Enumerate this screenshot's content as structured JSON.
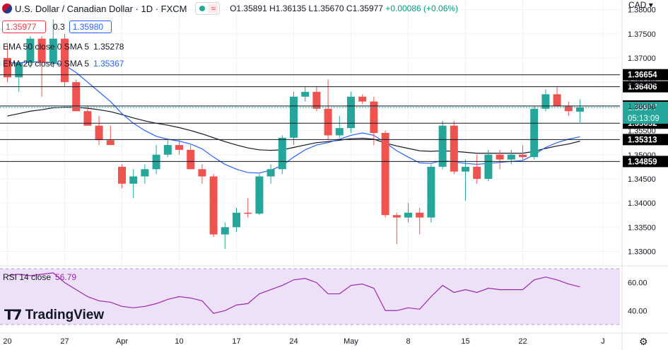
{
  "header": {
    "symbol": "U.S. Dollar / Canadian Dollar · 1D · FXCM",
    "open": "O1.35891",
    "high": "H1.36135",
    "low": "L1.35670",
    "close": "C1.35977",
    "change": "+0.00086 (+0.06%)",
    "currency": "CAD"
  },
  "trade": {
    "sell": "1.35977",
    "spread": "0.3",
    "buy": "1.35980"
  },
  "indicators": {
    "ema50_label": "EMA 50 close 0 SMA 5",
    "ema50_value": "1.35278",
    "ema20_label": "EMA 20 close 0 SMA 5",
    "ema20_value": "1.35367",
    "rsi_label": "RSI 14 close",
    "rsi_value": "56.79"
  },
  "logo_text": "TradingView",
  "colors": {
    "up": "#26a69a",
    "down": "#ef5350",
    "ema20": "#2962ff",
    "ema50": "#131722",
    "rsi": "#9c27b0",
    "rsi_band": "#ede1f7"
  },
  "chart_data": {
    "type": "candlestick",
    "ylim": [
      1.327,
      1.382
    ],
    "y_ticks": [
      1.33,
      1.335,
      1.34,
      1.345,
      1.35,
      1.355,
      1.36,
      1.365,
      1.37,
      1.375,
      1.38
    ],
    "x_labels": [
      {
        "label": "20",
        "index": 0
      },
      {
        "label": "27",
        "index": 5
      },
      {
        "label": "Apr",
        "index": 10
      },
      {
        "label": "10",
        "index": 15
      },
      {
        "label": "17",
        "index": 20
      },
      {
        "label": "24",
        "index": 25
      },
      {
        "label": "May",
        "index": 30
      },
      {
        "label": "8",
        "index": 35
      },
      {
        "label": "15",
        "index": 40
      },
      {
        "label": "22",
        "index": 45
      },
      {
        "label": "J",
        "index": 52
      }
    ],
    "ohlc": [
      [
        1.37,
        1.3728,
        1.365,
        1.366
      ],
      [
        1.366,
        1.369,
        1.363,
        1.369
      ],
      [
        1.369,
        1.3745,
        1.368,
        1.374
      ],
      [
        1.374,
        1.3745,
        1.362,
        1.369
      ],
      [
        1.369,
        1.378,
        1.368,
        1.374
      ],
      [
        1.374,
        1.375,
        1.364,
        1.365
      ],
      [
        1.365,
        1.3655,
        1.359,
        1.359
      ],
      [
        1.359,
        1.36,
        1.356,
        1.356
      ],
      [
        1.356,
        1.358,
        1.352,
        1.353
      ],
      [
        1.353,
        1.356,
        1.352,
        1.352
      ],
      [
        1.3475,
        1.348,
        1.343,
        1.344
      ],
      [
        1.344,
        1.347,
        1.341,
        1.3455
      ],
      [
        1.3455,
        1.348,
        1.344,
        1.347
      ],
      [
        1.347,
        1.352,
        1.346,
        1.35
      ],
      [
        1.35,
        1.353,
        1.3495,
        1.352
      ],
      [
        1.352,
        1.353,
        1.35,
        1.351
      ],
      [
        1.351,
        1.352,
        1.347,
        1.347
      ],
      [
        1.347,
        1.348,
        1.344,
        1.3455
      ],
      [
        1.3455,
        1.346,
        1.333,
        1.3335
      ],
      [
        1.3335,
        1.336,
        1.3305,
        1.335
      ],
      [
        1.335,
        1.339,
        1.334,
        1.338
      ],
      [
        1.338,
        1.341,
        1.337,
        1.3378
      ],
      [
        1.3378,
        1.346,
        1.3375,
        1.3455
      ],
      [
        1.3455,
        1.348,
        1.344,
        1.347
      ],
      [
        1.347,
        1.354,
        1.346,
        1.3535
      ],
      [
        1.3535,
        1.363,
        1.352,
        1.362
      ],
      [
        1.362,
        1.364,
        1.361,
        1.363
      ],
      [
        1.363,
        1.364,
        1.359,
        1.3595
      ],
      [
        1.3595,
        1.3655,
        1.353,
        1.354
      ],
      [
        1.354,
        1.358,
        1.3535,
        1.3555
      ],
      [
        1.3555,
        1.363,
        1.3545,
        1.362
      ],
      [
        1.362,
        1.3625,
        1.3605,
        1.361
      ],
      [
        1.361,
        1.362,
        1.352,
        1.3545
      ],
      [
        1.3545,
        1.355,
        1.337,
        1.3375
      ],
      [
        1.3375,
        1.338,
        1.3315,
        1.337
      ],
      [
        1.337,
        1.34,
        1.336,
        1.338
      ],
      [
        1.338,
        1.339,
        1.3335,
        1.337
      ],
      [
        1.337,
        1.348,
        1.336,
        1.3475
      ],
      [
        1.3475,
        1.357,
        1.347,
        1.356
      ],
      [
        1.356,
        1.357,
        1.346,
        1.3465
      ],
      [
        1.3465,
        1.349,
        1.3405,
        1.3475
      ],
      [
        1.3475,
        1.35,
        1.344,
        1.345
      ],
      [
        1.345,
        1.351,
        1.3445,
        1.35
      ],
      [
        1.35,
        1.351,
        1.347,
        1.349
      ],
      [
        1.349,
        1.351,
        1.348,
        1.35
      ],
      [
        1.35,
        1.352,
        1.349,
        1.3495
      ],
      [
        1.3495,
        1.36,
        1.349,
        1.3595
      ],
      [
        1.3595,
        1.3635,
        1.359,
        1.3625
      ],
      [
        1.3625,
        1.364,
        1.36,
        1.36
      ],
      [
        1.36,
        1.361,
        1.358,
        1.359
      ],
      [
        1.3589,
        1.3614,
        1.3567,
        1.3598
      ]
    ],
    "ema20": [
      1.369,
      1.369,
      1.3692,
      1.3692,
      1.369,
      1.3685,
      1.367,
      1.365,
      1.363,
      1.361,
      1.3585,
      1.3565,
      1.355,
      1.3538,
      1.3532,
      1.3528,
      1.3522,
      1.3512,
      1.3495,
      1.348,
      1.347,
      1.3463,
      1.3462,
      1.3468,
      1.3478,
      1.3495,
      1.351,
      1.352,
      1.3525,
      1.3532,
      1.354,
      1.3545,
      1.354,
      1.3525,
      1.3508,
      1.3495,
      1.3483,
      1.3482,
      1.3488,
      1.3485,
      1.3482,
      1.348,
      1.3482,
      1.3484,
      1.3486,
      1.3488,
      1.35,
      1.3515,
      1.3525,
      1.3532,
      1.3537
    ],
    "ema50": [
      1.358,
      1.3585,
      1.359,
      1.3593,
      1.3597,
      1.3598,
      1.3598,
      1.3596,
      1.3593,
      1.3589,
      1.3583,
      1.3576,
      1.357,
      1.3565,
      1.3561,
      1.3556,
      1.355,
      1.3543,
      1.3535,
      1.3527,
      1.352,
      1.3514,
      1.351,
      1.3509,
      1.351,
      1.3515,
      1.352,
      1.3525,
      1.3527,
      1.353,
      1.3533,
      1.3534,
      1.3532,
      1.3524,
      1.3518,
      1.3513,
      1.3508,
      1.3507,
      1.3508,
      1.3507,
      1.3505,
      1.3503,
      1.3503,
      1.3503,
      1.3503,
      1.3503,
      1.3507,
      1.3513,
      1.3518,
      1.3522,
      1.3528
    ],
    "horizontal_levels": [
      {
        "value": 1.36654,
        "label": "1.36654"
      },
      {
        "value": 1.36406,
        "label": "1.36406"
      },
      {
        "value": 1.36008,
        "label": "1.36008"
      },
      {
        "value": 1.35652,
        "label": "1.35652"
      },
      {
        "value": 1.35313,
        "label": "1.35313"
      },
      {
        "value": 1.34859,
        "label": "1.34859"
      }
    ],
    "last_price": {
      "value": 1.35977,
      "label": "1.35977",
      "countdown": "05:13:09"
    },
    "rsi": {
      "ylim": [
        28,
        72
      ],
      "ticks": [
        40,
        60
      ],
      "band": [
        30,
        70
      ],
      "values": [
        65,
        66,
        65,
        66,
        67,
        60,
        55,
        50,
        47,
        46,
        43,
        42,
        43,
        45,
        48,
        50,
        49,
        47,
        38,
        40,
        44,
        45,
        52,
        55,
        58,
        62,
        63,
        60,
        52,
        52,
        58,
        59,
        56,
        40,
        40,
        42,
        41,
        50,
        58,
        53,
        55,
        53,
        56,
        55,
        55,
        55,
        62,
        64,
        62,
        59,
        57
      ]
    }
  }
}
